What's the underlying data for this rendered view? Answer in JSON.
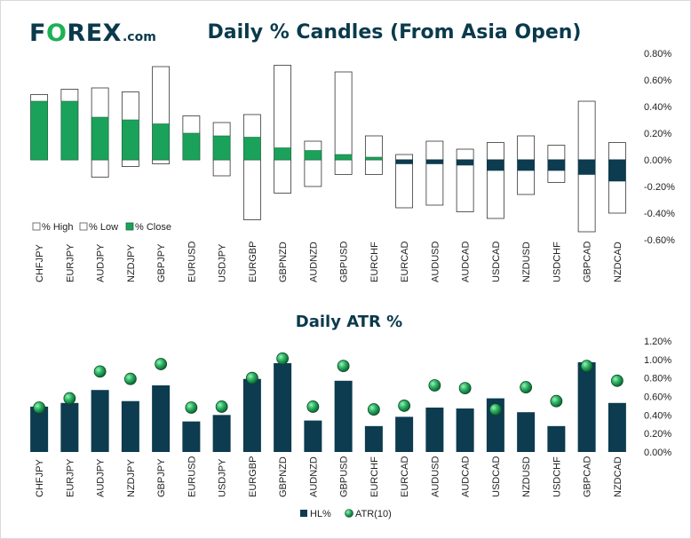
{
  "logo": {
    "prefix": "F",
    "accent": "O",
    "suffix": "REX",
    "tld": ".com"
  },
  "colors": {
    "navy": "#0d3b4f",
    "green": "#1aa25a",
    "green_dot": "#2bb564",
    "title": "#0a3a4c"
  },
  "chart_data": [
    {
      "type": "candlestick",
      "title": "Daily % Candles (From Asia Open)",
      "categories": [
        "CHFJPY",
        "EURJPY",
        "AUDJPY",
        "NZDJPY",
        "GBPJPY",
        "EURUSD",
        "USDJPY",
        "EURGBP",
        "GBPNZD",
        "AUDNZD",
        "GBPUSD",
        "EURCHF",
        "EURCAD",
        "AUDUSD",
        "AUDCAD",
        "USDCAD",
        "NZDUSD",
        "USDCHF",
        "GBPCAD",
        "NZDCAD"
      ],
      "high": [
        0.49,
        0.53,
        0.54,
        0.51,
        0.7,
        0.33,
        0.28,
        0.34,
        0.71,
        0.14,
        0.66,
        0.18,
        0.04,
        0.14,
        0.08,
        0.13,
        0.18,
        0.11,
        0.44,
        0.13
      ],
      "low": [
        0.0,
        0.0,
        -0.13,
        -0.05,
        -0.03,
        0.0,
        -0.12,
        -0.45,
        -0.25,
        -0.2,
        -0.11,
        -0.11,
        -0.36,
        -0.34,
        -0.39,
        -0.44,
        -0.26,
        -0.17,
        -0.54,
        -0.4
      ],
      "close": [
        0.44,
        0.44,
        0.32,
        0.3,
        0.27,
        0.2,
        0.18,
        0.17,
        0.09,
        0.07,
        0.04,
        0.02,
        -0.03,
        -0.03,
        -0.04,
        -0.08,
        -0.08,
        -0.08,
        -0.11,
        -0.16
      ],
      "y_ticks": [
        "0.80%",
        "0.60%",
        "0.40%",
        "0.20%",
        "0.00%",
        "-0.20%",
        "-0.40%",
        "-0.60%"
      ],
      "ylim": [
        -0.6,
        0.8
      ],
      "legend": [
        "% High",
        "% Low",
        "% Close"
      ],
      "legend_position": "bottom-left"
    },
    {
      "type": "bar+scatter",
      "title": "Daily ATR %",
      "categories": [
        "CHFJPY",
        "EURJPY",
        "AUDJPY",
        "NZDJPY",
        "GBPJPY",
        "EURUSD",
        "USDJPY",
        "EURGBP",
        "GBPNZD",
        "AUDNZD",
        "GBPUSD",
        "EURCHF",
        "EURCAD",
        "AUDUSD",
        "AUDCAD",
        "USDCAD",
        "NZDUSD",
        "USDCHF",
        "GBPCAD",
        "NZDCAD"
      ],
      "series": [
        {
          "name": "HL%",
          "type": "bar",
          "values": [
            0.49,
            0.53,
            0.67,
            0.55,
            0.72,
            0.33,
            0.4,
            0.79,
            0.96,
            0.34,
            0.77,
            0.28,
            0.38,
            0.48,
            0.47,
            0.58,
            0.43,
            0.28,
            0.97,
            0.53
          ]
        },
        {
          "name": "ATR(10)",
          "type": "scatter",
          "values": [
            0.48,
            0.58,
            0.87,
            0.79,
            0.95,
            0.48,
            0.49,
            0.8,
            1.01,
            0.49,
            0.93,
            0.46,
            0.5,
            0.72,
            0.69,
            0.46,
            0.7,
            0.55,
            0.93,
            0.77
          ]
        }
      ],
      "y_ticks": [
        "1.20%",
        "1.00%",
        "0.80%",
        "0.60%",
        "0.40%",
        "0.20%",
        "0.00%"
      ],
      "ylim": [
        0,
        1.2
      ],
      "legend": [
        "HL%",
        "ATR(10)"
      ],
      "legend_position": "bottom"
    }
  ]
}
